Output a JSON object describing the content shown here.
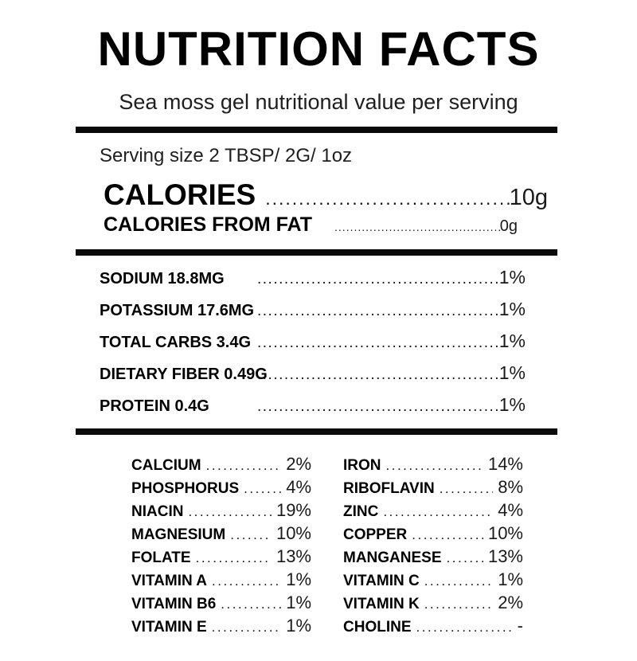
{
  "title": "NUTRITION FACTS",
  "subtitle": "Sea moss gel nutritional value per serving",
  "serving": {
    "text": "Serving size 2 TBSP/ 2G/ 1oz"
  },
  "calories": {
    "label": "CALORIES",
    "value": "10g"
  },
  "calories_from_fat": {
    "label": "CALORIES FROM FAT",
    "value": "0g"
  },
  "main_rows": [
    {
      "label": "SODIUM 18.8MG",
      "value": "1%"
    },
    {
      "label": "POTASSIUM 17.6MG",
      "value": "1%"
    },
    {
      "label": "TOTAL CARBS 3.4G",
      "value": "1%"
    },
    {
      "label": "DIETARY FIBER 0.49G",
      "value": "1%"
    },
    {
      "label": "PROTEIN 0.4G",
      "value": "1%"
    }
  ],
  "micronutrients": {
    "left": [
      {
        "label": "CALCIUM",
        "value": "2%"
      },
      {
        "label": "PHOSPHORUS",
        "value": "4%"
      },
      {
        "label": "NIACIN",
        "value": "19%"
      },
      {
        "label": "MAGNESIUM",
        "value": "10%"
      },
      {
        "label": "FOLATE",
        "value": "13%"
      },
      {
        "label": "VITAMIN A",
        "value": "1%"
      },
      {
        "label": "VITAMIN B6",
        "value": "1%"
      },
      {
        "label": "VITAMIN E",
        "value": "1%"
      }
    ],
    "right": [
      {
        "label": "IRON",
        "value": "14%"
      },
      {
        "label": "RIBOFLAVIN",
        "value": "8%"
      },
      {
        "label": "ZINC",
        "value": "4%"
      },
      {
        "label": "COPPER",
        "value": "10%"
      },
      {
        "label": "MANGANESE",
        "value": "13%"
      },
      {
        "label": "VITAMIN C",
        "value": "1%"
      },
      {
        "label": "VITAMIN K",
        "value": "2%"
      },
      {
        "label": "CHOLINE",
        "value": "-"
      }
    ]
  },
  "leader": {
    "dots": "................................................................................"
  },
  "colors": {
    "text": "#000000",
    "muted_text": "#1f1f1f",
    "background": "#ffffff",
    "bar": "#0a0a0a"
  }
}
